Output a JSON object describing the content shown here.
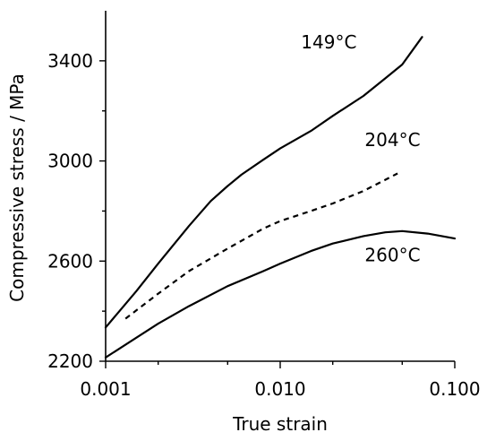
{
  "chart_data": {
    "type": "line",
    "title": "",
    "xlabel": "True strain",
    "ylabel": "Compressive stress / MPa",
    "xscale": "log",
    "xlim": [
      0.001,
      0.1
    ],
    "ylim": [
      2200,
      3600
    ],
    "grid": false,
    "legend": "none (series labels placed next to curves)",
    "x_ticks": [
      {
        "value": 0.001,
        "label": "0.001"
      },
      {
        "value": 0.01,
        "label": "0.010"
      },
      {
        "value": 0.1,
        "label": "0.100"
      }
    ],
    "y_ticks": [
      {
        "value": 2200,
        "label": "2200"
      },
      {
        "value": 2600,
        "label": "2600"
      },
      {
        "value": 3000,
        "label": "3000"
      },
      {
        "value": 3400,
        "label": "3400"
      }
    ],
    "series": [
      {
        "name": "149°C",
        "style": "solid",
        "color": "#000000",
        "points": [
          [
            0.001,
            2335
          ],
          [
            0.0015,
            2480
          ],
          [
            0.002,
            2590
          ],
          [
            0.003,
            2740
          ],
          [
            0.004,
            2840
          ],
          [
            0.005,
            2900
          ],
          [
            0.006,
            2945
          ],
          [
            0.008,
            3005
          ],
          [
            0.01,
            3050
          ],
          [
            0.015,
            3120
          ],
          [
            0.02,
            3180
          ],
          [
            0.03,
            3260
          ],
          [
            0.04,
            3330
          ],
          [
            0.05,
            3385
          ],
          [
            0.065,
            3495
          ]
        ]
      },
      {
        "name": "204°C",
        "style": "dashed",
        "color": "#000000",
        "points": [
          [
            0.0013,
            2370
          ],
          [
            0.002,
            2470
          ],
          [
            0.003,
            2560
          ],
          [
            0.005,
            2650
          ],
          [
            0.008,
            2730
          ],
          [
            0.01,
            2760
          ],
          [
            0.015,
            2800
          ],
          [
            0.02,
            2830
          ],
          [
            0.03,
            2880
          ],
          [
            0.047,
            2950
          ]
        ]
      },
      {
        "name": "260°C",
        "style": "solid",
        "color": "#000000",
        "points": [
          [
            0.001,
            2215
          ],
          [
            0.002,
            2350
          ],
          [
            0.003,
            2420
          ],
          [
            0.005,
            2500
          ],
          [
            0.008,
            2560
          ],
          [
            0.01,
            2590
          ],
          [
            0.015,
            2640
          ],
          [
            0.02,
            2670
          ],
          [
            0.03,
            2700
          ],
          [
            0.04,
            2715
          ],
          [
            0.05,
            2720
          ],
          [
            0.07,
            2710
          ],
          [
            0.1,
            2690
          ]
        ]
      }
    ]
  }
}
